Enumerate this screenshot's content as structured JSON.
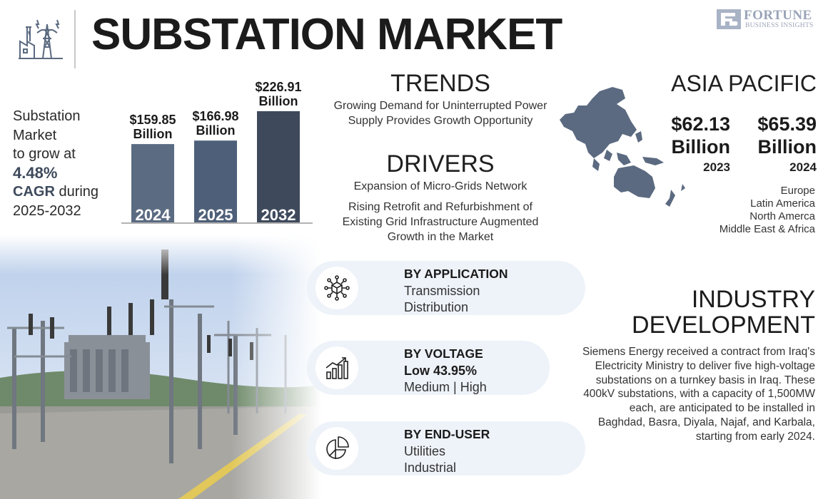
{
  "header": {
    "title": "SUBSTATION MARKET",
    "icon": "power-plant-icon",
    "logo_brand": "FORTUNE",
    "logo_sub": "BUSINESS INSIGHTS"
  },
  "growth": {
    "line1": "Substation",
    "line2": "Market",
    "line3": "to grow at",
    "rate": "4.48%",
    "cagr": "CAGR",
    "during": "during",
    "period": "2025-2032"
  },
  "chart_data": {
    "type": "bar",
    "categories": [
      "2024",
      "2025",
      "2032"
    ],
    "values": [
      159.85,
      166.98,
      226.91
    ],
    "value_labels": [
      [
        "$159.85",
        "Billion"
      ],
      [
        "$166.98",
        "Billion"
      ],
      [
        "$226.91",
        "Billion"
      ]
    ],
    "colors": [
      "#5a6b82",
      "#4e6079",
      "#3e4a5c"
    ]
  },
  "trends": {
    "title": "TRENDS",
    "text": "Growing Demand for Uninterrupted Power Supply Provides Growth Opportunity"
  },
  "drivers": {
    "title": "DRIVERS",
    "item1": "Expansion of Micro-Grids Network",
    "item2": "Rising Retrofit and Refurbishment of Existing Grid Infrastructure Augmented Growth in the Market"
  },
  "region": {
    "title": "ASIA PACIFIC",
    "map_icon": "asia-pacific-map",
    "stat2023_value": "$62.13",
    "stat2023_unit": "Billion",
    "stat2023_year": "2023",
    "stat2024_value": "$65.39",
    "stat2024_unit": "Billion",
    "stat2024_year": "2024",
    "others": [
      "Europe",
      "Latin America",
      "North Amerca",
      "Middle East & Africa"
    ]
  },
  "segments": {
    "application": {
      "title": "BY APPLICATION",
      "items": [
        "Transmission",
        "Distribution"
      ],
      "icon": "network-cube-icon"
    },
    "voltage": {
      "title": "BY VOLTAGE",
      "items": [
        "Low 43.95%",
        "Medium  |  High"
      ],
      "icon": "growth-bar-chart-icon"
    },
    "end_user": {
      "title": "BY END-USER",
      "items": [
        "Utilities",
        "Industrial"
      ],
      "icon": "pie-chart-icon"
    }
  },
  "industry": {
    "title_line1": "INDUSTRY",
    "title_line2": "DEVELOPMENT",
    "text": "Siemens Energy received a contract from Iraq's Electricity Ministry to deliver five high-voltage substations on a turnkey basis in Iraq. These 400kV substations, with a capacity of 1,500MW each, are anticipated to be installed in Baghdad, Basra, Diyala, Najaf, and Karbala, starting from early 2024."
  },
  "colors": {
    "accent_dark": "#3e4a5c",
    "pill_bg": "#eef2f9",
    "map": "#5b6a80"
  }
}
